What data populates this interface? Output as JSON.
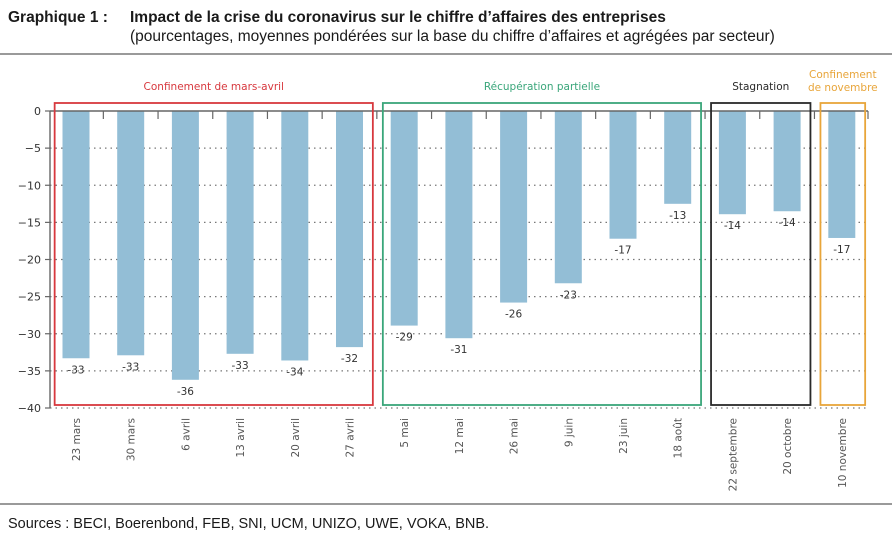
{
  "header": {
    "label": "Graphique 1 :",
    "title": "Impact de la crise du coronavirus sur le chiffre d’affaires des entreprises",
    "subtitle": "(pourcentages, moyennes pondérées sur la base du chiffre d’affaires et agrégées par secteur)"
  },
  "footer": {
    "sources": "Sources : BECI, Boerenbond, FEB, SNI, UCM, UNIZO, UWE, VOKA, BNB."
  },
  "chart_data": {
    "type": "bar",
    "title": "Impact de la crise du coronavirus sur le chiffre d’affaires des entreprises",
    "subtitle": "(pourcentages, moyennes pondérées sur la base du chiffre d’affaires et agrégées par secteur)",
    "xlabel": "",
    "ylabel": "",
    "ylim": [
      -40,
      0
    ],
    "yticks": [
      0,
      -5,
      -10,
      -15,
      -20,
      -25,
      -30,
      -35,
      -40
    ],
    "ytick_labels": [
      "0",
      "−5",
      "−10",
      "−15",
      "−20",
      "−25",
      "−30",
      "−35",
      "−40"
    ],
    "grid": "horizontal dotted",
    "bar_color": "#93bed6",
    "categories": [
      "23 mars",
      "30 mars",
      "6 avril",
      "13 avril",
      "20 avril",
      "27 avril",
      "5 mai",
      "12 mai",
      "26 mai",
      "9 juin",
      "23 juin",
      "18 août",
      "22 septembre",
      "20 octobre",
      "10 novembre"
    ],
    "values": [
      -33.3,
      -32.9,
      -36.2,
      -32.7,
      -33.6,
      -31.8,
      -28.9,
      -30.6,
      -25.8,
      -23.2,
      -17.2,
      -12.5,
      -13.9,
      -13.5,
      -17.1
    ],
    "data_labels": [
      "-33",
      "-33",
      "-36",
      "-33",
      "-34",
      "-32",
      "-29",
      "-31",
      "-26",
      "-23",
      "-17",
      "-13",
      "-14",
      "-14",
      "-17"
    ],
    "phases": [
      {
        "name": "Confinement de mars-avril",
        "label_lines": [
          "Confinement de mars-avril"
        ],
        "start": 0,
        "end": 5,
        "color": "#d7383e"
      },
      {
        "name": "Récupération partielle",
        "label_lines": [
          "Récupération partielle"
        ],
        "start": 6,
        "end": 11,
        "color": "#3aa67a"
      },
      {
        "name": "Stagnation",
        "label_lines": [
          "Stagnation"
        ],
        "start": 12,
        "end": 13,
        "color": "#2a2a2a"
      },
      {
        "name": "Confinement de novembre",
        "label_lines": [
          "Confinement",
          "de novembre"
        ],
        "start": 14,
        "end": 14,
        "color": "#e8a53a"
      }
    ]
  }
}
